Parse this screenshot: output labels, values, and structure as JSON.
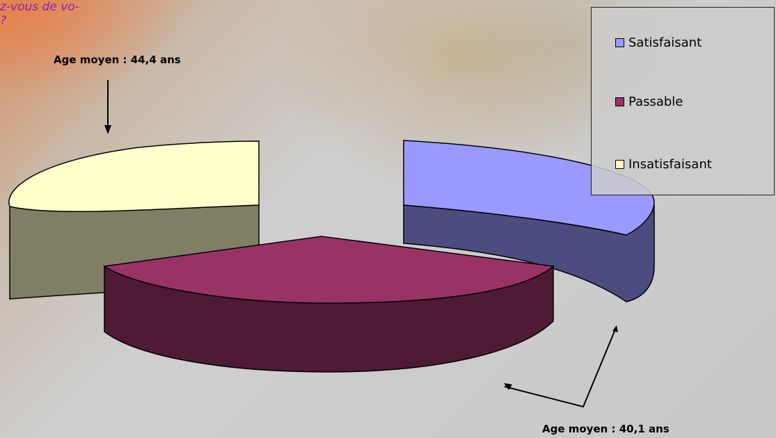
{
  "slide": {
    "question_text": "z-vous de vo-\n?"
  },
  "chart_data": {
    "type": "pie",
    "title": "",
    "categories": [
      "Satisfaisant",
      "Passable",
      "Insatisfaisant"
    ],
    "series": [
      {
        "values": [
          30,
          37,
          33
        ]
      }
    ],
    "exploded": true,
    "three_d": true,
    "legend_position": "top-right",
    "legend": [
      {
        "label": "Satisfaisant",
        "color": "#9999ff"
      },
      {
        "label": "Passable",
        "color": "#993366"
      },
      {
        "label": "Insatisfaisant",
        "color": "#ffffcc"
      }
    ],
    "annotations": [
      {
        "text": "Age moyen : 44,4 ans",
        "target": "Insatisfaisant"
      },
      {
        "text": "Age moyen : 40,1 ans",
        "target": "Satisfaisant, Passable"
      }
    ]
  },
  "colors": {
    "satisfaisant_top": "#9999ff",
    "satisfaisant_side": "#4d4c80",
    "passable_top": "#993366",
    "passable_side": "#4e1a34",
    "insatisfaisant_top": "#ffffcc",
    "insatisfaisant_side": "#807f66",
    "question_text": "#8a22b3"
  }
}
